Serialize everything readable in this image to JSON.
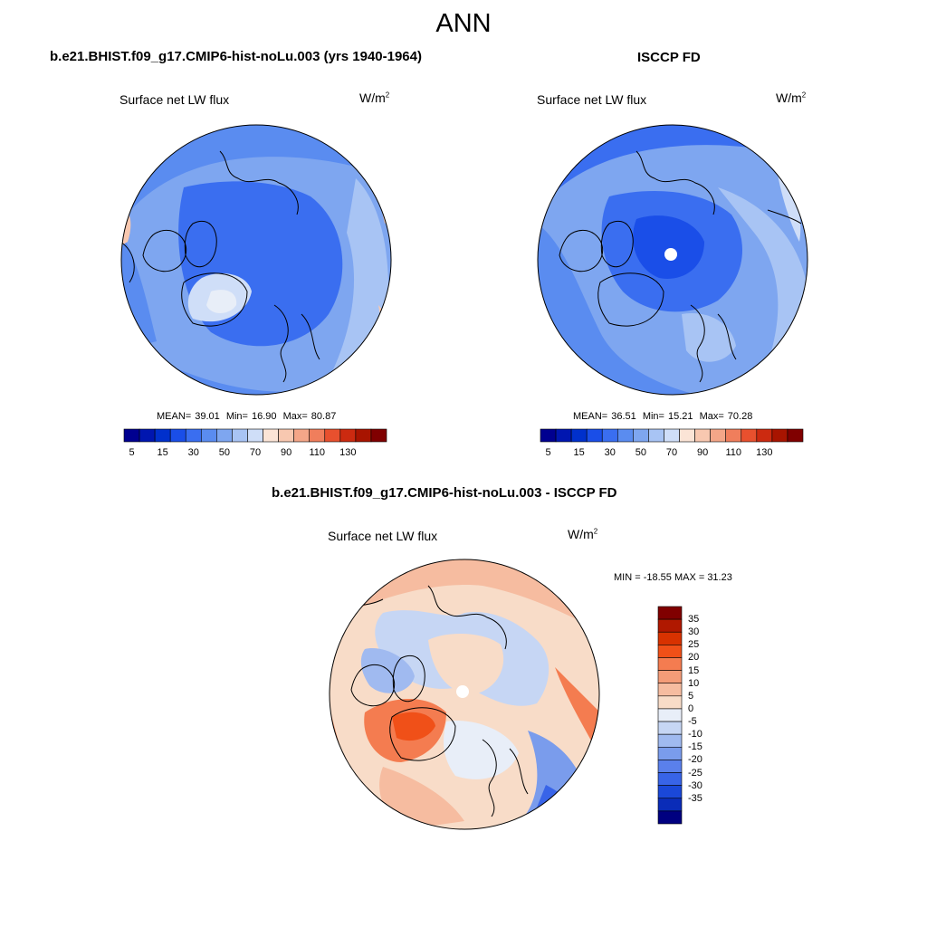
{
  "title": "ANN",
  "panels": [
    {
      "id": "model",
      "title": "b.e21.BHIST.f09_g17.CMIP6-hist-noLu.003 (yrs 1940-1964)",
      "variable": "Surface net LW flux",
      "units_base": "W/m",
      "units_sup": "2",
      "stats": {
        "mean_label": "MEAN=",
        "mean": "39.01",
        "min_label": "Min=",
        "min": "16.90",
        "max_label": "Max=",
        "max": "80.87"
      }
    },
    {
      "id": "obs",
      "title": "ISCCP FD",
      "variable": "Surface net LW flux",
      "units_base": "W/m",
      "units_sup": "2",
      "stats": {
        "mean_label": "MEAN=",
        "mean": "36.51",
        "min_label": "Min=",
        "min": "15.21",
        "max_label": "Max=",
        "max": "70.28"
      }
    },
    {
      "id": "diff",
      "title": "b.e21.BHIST.f09_g17.CMIP6-hist-noLu.003 - ISCCP FD",
      "variable": "Surface net LW flux",
      "units_base": "W/m",
      "units_sup": "2",
      "minmax_text": "MIN = -18.55 MAX =  31.23"
    }
  ],
  "field_colorbar": {
    "colors": [
      "#000090",
      "#0016b0",
      "#0030cc",
      "#1a4ee8",
      "#3a6ef0",
      "#5a8cf0",
      "#7ea6f0",
      "#a8c4f4",
      "#cfdef8",
      "#fbe4d6",
      "#f8c8b0",
      "#f4a688",
      "#f07e5c",
      "#e8502e",
      "#cc2a10",
      "#a81400",
      "#800000"
    ],
    "tick_labels": [
      "5",
      "15",
      "30",
      "50",
      "70",
      "90",
      "110",
      "130"
    ]
  },
  "diff_colorbar": {
    "colors": [
      "#800000",
      "#b01800",
      "#d83200",
      "#f05018",
      "#f47c50",
      "#f49c78",
      "#f6bca0",
      "#f8dcc8",
      "#e8eef8",
      "#c6d6f4",
      "#a0baf0",
      "#7a9cec",
      "#5a80ec",
      "#3864e8",
      "#1a48d8",
      "#0a2cb8",
      "#000080"
    ],
    "labels": [
      "35",
      "30",
      "25",
      "20",
      "15",
      "10",
      "5",
      "0",
      "-5",
      "-10",
      "-15",
      "-20",
      "-25",
      "-30",
      "-35"
    ]
  },
  "chart_data": [
    {
      "type": "heatmap",
      "projection": "north polar stereographic",
      "title": "b.e21.BHIST.f09_g17.CMIP6-hist-noLu.003 (yrs 1940-1964)",
      "variable": "Surface net LW flux",
      "units": "W/m2",
      "mean": 39.01,
      "min": 16.9,
      "max": 80.87,
      "colorbar_ticks": [
        5,
        15,
        30,
        50,
        70,
        90,
        110,
        130
      ]
    },
    {
      "type": "heatmap",
      "projection": "north polar stereographic",
      "title": "ISCCP FD",
      "variable": "Surface net LW flux",
      "units": "W/m2",
      "mean": 36.51,
      "min": 15.21,
      "max": 70.28,
      "colorbar_ticks": [
        5,
        15,
        30,
        50,
        70,
        90,
        110,
        130
      ]
    },
    {
      "type": "heatmap",
      "projection": "north polar stereographic",
      "title": "b.e21.BHIST.f09_g17.CMIP6-hist-noLu.003 - ISCCP FD",
      "variable": "Surface net LW flux",
      "units": "W/m2",
      "min": -18.55,
      "max": 31.23,
      "colorbar_levels": [
        35,
        30,
        25,
        20,
        15,
        10,
        5,
        0,
        -5,
        -10,
        -15,
        -20,
        -25,
        -30,
        -35
      ]
    }
  ]
}
